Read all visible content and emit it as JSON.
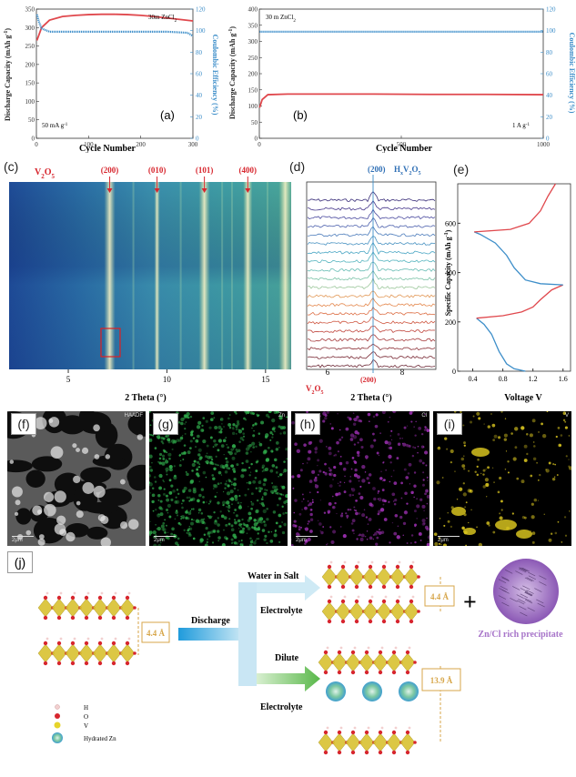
{
  "panels": {
    "a": {
      "label": "(a)",
      "condition": "30m ZnCl",
      "condition_sub": "2",
      "rate": "50 mA g",
      "rate_sup": "-1",
      "xlabel": "Cycle Number",
      "ylabel": "Discharge Capacity (mAh g",
      "ylabel_sup": "-1",
      "ylabel_end": ")",
      "y2label": "Coulombic Efficiency (%)"
    },
    "b": {
      "label": "(b)",
      "condition": "30 m ZnCl",
      "condition_sub": "2",
      "rate": "1 A g",
      "rate_sup": "-1",
      "xlabel": "Cycle Number",
      "ylabel": "Discharge Capacity (mAh g",
      "ylabel_sup": "-1",
      "ylabel_end": ")",
      "y2label": "Coulombic Efficiency (%)"
    },
    "c": {
      "label": "(c)",
      "phase": "V",
      "phase_sub1": "2",
      "phase_mid": "O",
      "phase_sub2": "5",
      "peaks": [
        "(200)",
        "(010)",
        "(101)",
        "(400)"
      ],
      "xlabel": "2 Theta (°)",
      "xticks": [
        "5",
        "10",
        "15"
      ]
    },
    "d": {
      "label": "(d)",
      "top_peak": "(200)",
      "top_phase": "H",
      "top_phase_sub": "x",
      "top_phase_mid": "V",
      "top_phase_sub2": "2",
      "top_phase_end": "O",
      "top_phase_sub3": "5",
      "bottom_peak": "(200)",
      "bottom_phase": "V",
      "bottom_phase_sub1": "2",
      "bottom_phase_mid": "O",
      "bottom_phase_sub2": "5",
      "xlabel": "2 Theta (°)",
      "xticks": [
        "6",
        "8"
      ]
    },
    "e": {
      "label": "(e)",
      "ylabel": "Specific Capacity (mAh g",
      "ylabel_sup": "-1",
      "ylabel_end": ")",
      "xlabel": "Voltage V",
      "xticks": [
        "0.4",
        "0.8",
        "1.2",
        "1.6"
      ],
      "yticks": [
        "0",
        "200",
        "400",
        "600"
      ]
    },
    "f": {
      "label": "(f)",
      "tag": "HAADF",
      "scale": "2μm"
    },
    "g": {
      "label": "(g)",
      "tag": "Zn",
      "scale": "2μm",
      "color": "#2fa84a"
    },
    "h": {
      "label": "(h)",
      "tag": "Cl",
      "scale": "2μm",
      "color": "#9b2fb0"
    },
    "i": {
      "label": "(i)",
      "tag": "V",
      "scale": "2μm",
      "color": "#d6c21f"
    },
    "j": {
      "label": "(j)",
      "discharge": "Discharge",
      "wis_line1": "Water in Salt",
      "wis_line2": "Electrolyte",
      "dilute_line1": "Dilute",
      "dilute_line2": "Electrolyte",
      "spacing_initial": "4.4 Å",
      "spacing_wis": "4.4 Å",
      "spacing_dilute": "13.9 Å",
      "plus": "+",
      "precipitate": "Zn/Cl rich precipitate",
      "legend": [
        "H",
        "O",
        "V",
        "Hydrated Zn"
      ]
    }
  },
  "colors": {
    "capacity": "#e0484d",
    "efficiency": "#3d8ec9",
    "label_red": "#d7262e",
    "label_blue": "#2f6fb5",
    "arrow": "#3aa0d8",
    "dilute_arrow": "#59b84a",
    "precip": "#a774c9",
    "gold": "#d7a64a"
  },
  "chart_data": [
    {
      "type": "line",
      "title": "",
      "xlabel": "Cycle Number",
      "ylabel": "Discharge Capacity (mAh g-1)",
      "y2label": "Coulombic Efficiency (%)",
      "xlim": [
        0,
        300
      ],
      "ylim": [
        0,
        350
      ],
      "y2lim": [
        0,
        120
      ],
      "xticks": [
        0,
        100,
        200,
        300
      ],
      "yticks": [
        0,
        50,
        100,
        150,
        200,
        250,
        300,
        350
      ],
      "y2ticks": [
        0,
        20,
        40,
        60,
        80,
        100,
        120
      ],
      "series": [
        {
          "name": "capacity",
          "axis": "left",
          "x": [
            1,
            10,
            25,
            50,
            75,
            100,
            125,
            150,
            175,
            200,
            225,
            250,
            275,
            300
          ],
          "y": [
            265,
            300,
            320,
            330,
            333,
            335,
            336,
            336,
            335,
            333,
            330,
            326,
            322,
            318
          ]
        },
        {
          "name": "efficiency",
          "axis": "right",
          "x": [
            1,
            5,
            10,
            25,
            50,
            100,
            150,
            200,
            250,
            290,
            300
          ],
          "y": [
            115,
            108,
            102,
            99,
            99,
            99,
            99,
            99,
            99,
            98,
            95
          ]
        }
      ]
    },
    {
      "type": "line",
      "title": "",
      "xlabel": "Cycle Number",
      "ylabel": "Discharge Capacity (mAh g-1)",
      "y2label": "Coulombic Efficiency (%)",
      "xlim": [
        0,
        1000
      ],
      "ylim": [
        0,
        400
      ],
      "y2lim": [
        0,
        120
      ],
      "xticks": [
        0,
        500,
        1000
      ],
      "yticks": [
        0,
        50,
        100,
        150,
        200,
        250,
        300,
        350,
        400
      ],
      "y2ticks": [
        0,
        20,
        40,
        60,
        80,
        100,
        120
      ],
      "series": [
        {
          "name": "capacity",
          "axis": "left",
          "x": [
            1,
            10,
            30,
            100,
            200,
            400,
            600,
            800,
            1000
          ],
          "y": [
            95,
            120,
            135,
            137,
            137,
            137,
            136,
            136,
            135
          ]
        },
        {
          "name": "efficiency",
          "axis": "right",
          "x": [
            1,
            50,
            200,
            400,
            600,
            800,
            1000
          ],
          "y": [
            99,
            99,
            99,
            99,
            99,
            99,
            99
          ]
        }
      ]
    },
    {
      "type": "line",
      "title": "",
      "xlabel": "Voltage V",
      "ylabel": "Specific Capacity (mAh g-1)",
      "xlim": [
        0.2,
        1.7
      ],
      "ylim": [
        0,
        760
      ],
      "xticks": [
        0.4,
        0.8,
        1.2,
        1.6
      ],
      "yticks": [
        0,
        200,
        400,
        600
      ],
      "series": [
        {
          "name": "discharge",
          "color": "blue",
          "x": [
            1.1,
            0.95,
            0.85,
            0.75,
            0.65,
            0.55,
            0.45
          ],
          "y": [
            0,
            10,
            30,
            80,
            150,
            190,
            215
          ]
        },
        {
          "name": "charge",
          "color": "red",
          "x": [
            0.45,
            0.8,
            1.05,
            1.2,
            1.3,
            1.45,
            1.6
          ],
          "y": [
            215,
            225,
            240,
            260,
            290,
            330,
            350
          ]
        },
        {
          "name": "discharge2",
          "color": "blue",
          "x": [
            1.6,
            1.3,
            1.1,
            0.95,
            0.85,
            0.7,
            0.5,
            0.42
          ],
          "y": [
            350,
            355,
            370,
            420,
            470,
            520,
            555,
            565
          ]
        },
        {
          "name": "charge2",
          "color": "red",
          "x": [
            0.42,
            0.9,
            1.15,
            1.3,
            1.4,
            1.5
          ],
          "y": [
            565,
            575,
            600,
            650,
            710,
            760
          ]
        }
      ]
    }
  ]
}
